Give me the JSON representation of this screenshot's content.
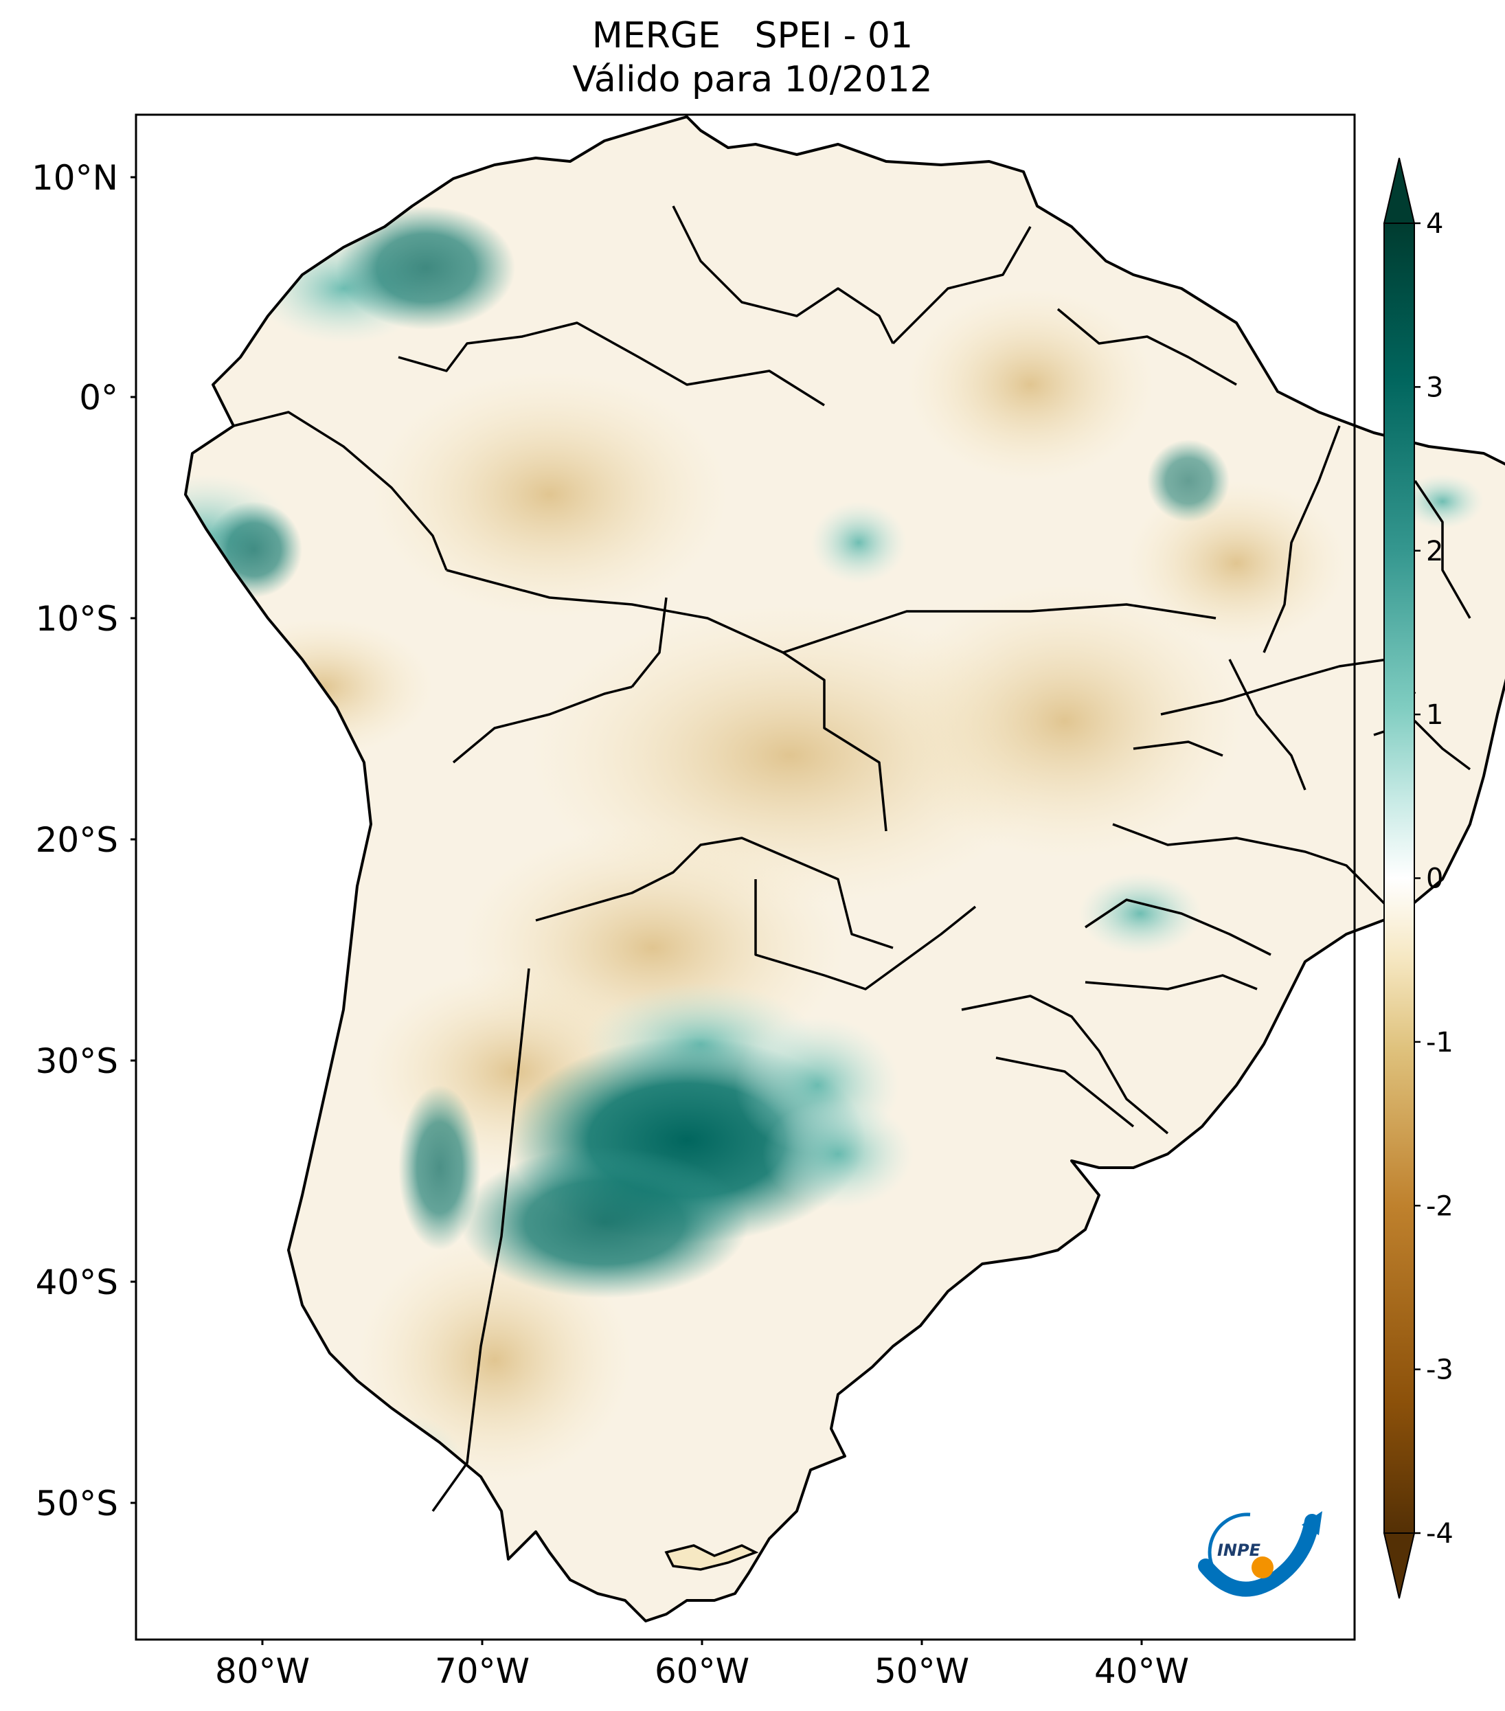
{
  "title": {
    "line1": "MERGE   SPEI - 01",
    "line2": "Válido para 10/2012"
  },
  "map": {
    "lon_range": [
      -85,
      -29
    ],
    "lat_range": [
      -56,
      13
    ],
    "lon_ticks": [
      "80°W",
      "70°W",
      "60°W",
      "50°W",
      "40°W"
    ],
    "lat_ticks": [
      "10°N",
      "0°",
      "10°S",
      "20°S",
      "30°S",
      "40°S",
      "50°S"
    ],
    "coastline_color": "#000000",
    "background": "#ffffff"
  },
  "colorbar": {
    "ticks": [
      "4",
      "3",
      "2",
      "1",
      "0",
      "-1",
      "-2",
      "-3",
      "-4"
    ],
    "range": [
      -4,
      4
    ],
    "colors": [
      "#543005",
      "#8c510a",
      "#bf812d",
      "#dfc27d",
      "#f6e8c3",
      "#ffffff",
      "#c7eae5",
      "#80cdc1",
      "#35978f",
      "#01665e",
      "#003c30"
    ],
    "extend": "both"
  },
  "logo": {
    "text": "INPE",
    "icon": "inpe-logo-icon"
  }
}
